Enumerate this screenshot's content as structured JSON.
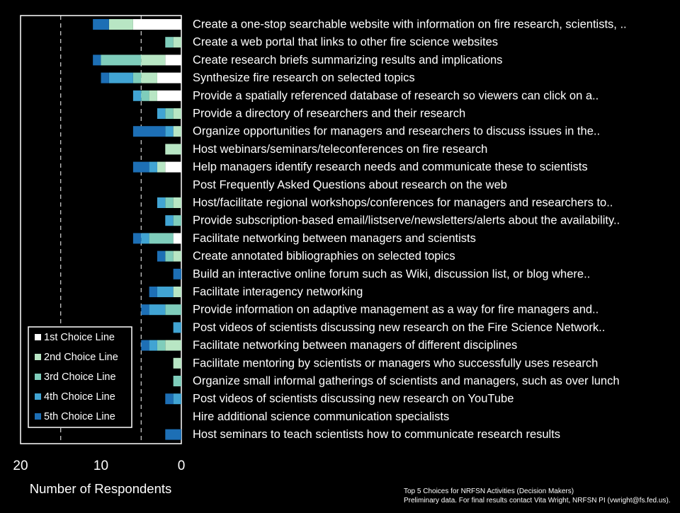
{
  "colors": {
    "background": "#000000",
    "text": "#ffffff",
    "axis": "#ffffff",
    "series": [
      "#ffffff",
      "#b8e6c4",
      "#7fcdbb",
      "#41a4d3",
      "#1d6fb5"
    ]
  },
  "chart_data": {
    "type": "bar",
    "orientation": "horizontal",
    "stacked": true,
    "x_reversed": true,
    "xlabel": "Number of Respondents",
    "xlim": [
      0,
      20
    ],
    "xticks": [
      20,
      10,
      0
    ],
    "grid_x": [
      15,
      5
    ],
    "legend_position": "bottom-left",
    "categories": [
      "Create a one-stop searchable website with information on fire research, scientists, ..",
      "Create a web portal that links to other fire science websites",
      "Create research briefs summarizing results and implications",
      "Synthesize fire research on selected topics",
      "Provide a spatially referenced database of research so viewers can click on a..",
      "Provide a directory of researchers and their research",
      "Organize opportunities for managers and researchers to discuss issues in the..",
      "Host webinars/seminars/teleconferences on fire research",
      "Help managers identify research needs and communicate these to scientists",
      "Post Frequently Asked Questions about research on the web",
      "Host/facilitate regional workshops/conferences for managers and researchers to..",
      "Provide subscription-based email/listserve/newsletters/alerts about the availability..",
      "Facilitate networking between managers and scientists",
      "Create annotated bibliographies on selected topics",
      "Build an interactive online forum such as Wiki, discussion list, or blog where..",
      "Facilitate interagency networking",
      "Provide information on adaptive management as a way for fire managers and..",
      "Post videos of scientists discussing new research on the Fire Science Network..",
      "Facilitate networking between managers of different disciplines",
      "Facilitate mentoring by scientists or managers who successfully uses research",
      "Organize small informal gatherings of scientists and managers, such as over lunch",
      "Post videos of scientists discussing new research on YouTube",
      "Hire additional science communication specialists",
      "Host seminars to teach scientists how to communicate research results"
    ],
    "series": [
      {
        "name": "1st Choice Line",
        "values": [
          6,
          0,
          2,
          3,
          3,
          0,
          0,
          0,
          2,
          0,
          0,
          0,
          1,
          0,
          0,
          0,
          0,
          0,
          0,
          0,
          0,
          0,
          0,
          0
        ]
      },
      {
        "name": "2nd Choice Line",
        "values": [
          3,
          1,
          3,
          2,
          1,
          1,
          1,
          2,
          1,
          0,
          1,
          0,
          0,
          1,
          0,
          1,
          0,
          0,
          2,
          1,
          0,
          0,
          0,
          0
        ]
      },
      {
        "name": "3rd Choice Line",
        "values": [
          0,
          1,
          5,
          1,
          1,
          1,
          0,
          0,
          0,
          0,
          1,
          1,
          3,
          1,
          0,
          0,
          2,
          0,
          1,
          0,
          1,
          0,
          0,
          0
        ]
      },
      {
        "name": "4th Choice Line",
        "values": [
          0,
          0,
          0,
          3,
          1,
          1,
          1,
          0,
          1,
          0,
          1,
          1,
          1,
          0,
          0,
          2,
          2,
          1,
          1,
          0,
          0,
          1,
          0,
          0
        ]
      },
      {
        "name": "5th Choice Line",
        "values": [
          2,
          0,
          1,
          1,
          0,
          0,
          4,
          0,
          2,
          0,
          0,
          0,
          1,
          1,
          1,
          1,
          1,
          0,
          1,
          0,
          0,
          1,
          0,
          2
        ]
      }
    ]
  },
  "footnote": {
    "line1": "Top 5 Choices for NRFSN Activities (Decision Makers)",
    "line2": "Preliminary data. For final results contact Vita Wright, NRFSN PI (vwright@fs.fed.us)."
  }
}
